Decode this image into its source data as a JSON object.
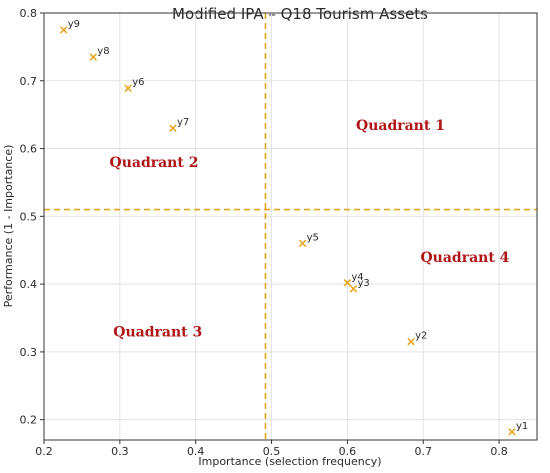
{
  "chart_data": {
    "type": "scatter",
    "title": "Modified IPA – Q18 Tourism Assets",
    "xlabel": "Importance (selection frequency)",
    "ylabel": "Performance (1 - Importance)",
    "xlim": [
      0.2,
      0.85
    ],
    "ylim": [
      0.17,
      0.8
    ],
    "xticks": [
      0.2,
      0.3,
      0.4,
      0.5,
      0.6,
      0.7,
      0.8
    ],
    "yticks": [
      0.2,
      0.3,
      0.4,
      0.5,
      0.6,
      0.7,
      0.8
    ],
    "grid": true,
    "marker": "x",
    "marker_color": "#e8a317",
    "threshold_x": 0.492,
    "threshold_y": 0.51,
    "threshold_color": "#e8a317",
    "points": [
      {
        "label": "y1",
        "x": 0.817,
        "y": 0.182
      },
      {
        "label": "y2",
        "x": 0.684,
        "y": 0.315
      },
      {
        "label": "y3",
        "x": 0.608,
        "y": 0.393
      },
      {
        "label": "y4",
        "x": 0.6,
        "y": 0.402
      },
      {
        "label": "y5",
        "x": 0.541,
        "y": 0.46
      },
      {
        "label": "y6",
        "x": 0.311,
        "y": 0.689
      },
      {
        "label": "y7",
        "x": 0.37,
        "y": 0.63
      },
      {
        "label": "y8",
        "x": 0.265,
        "y": 0.735
      },
      {
        "label": "y9",
        "x": 0.226,
        "y": 0.775
      }
    ],
    "annotations": [
      {
        "text": "Quadrant 1",
        "x": 0.67,
        "y": 0.635
      },
      {
        "text": "Quadrant 2",
        "x": 0.345,
        "y": 0.58
      },
      {
        "text": "Quadrant 3",
        "x": 0.35,
        "y": 0.33
      },
      {
        "text": "Quadrant 4",
        "x": 0.755,
        "y": 0.44
      }
    ]
  }
}
